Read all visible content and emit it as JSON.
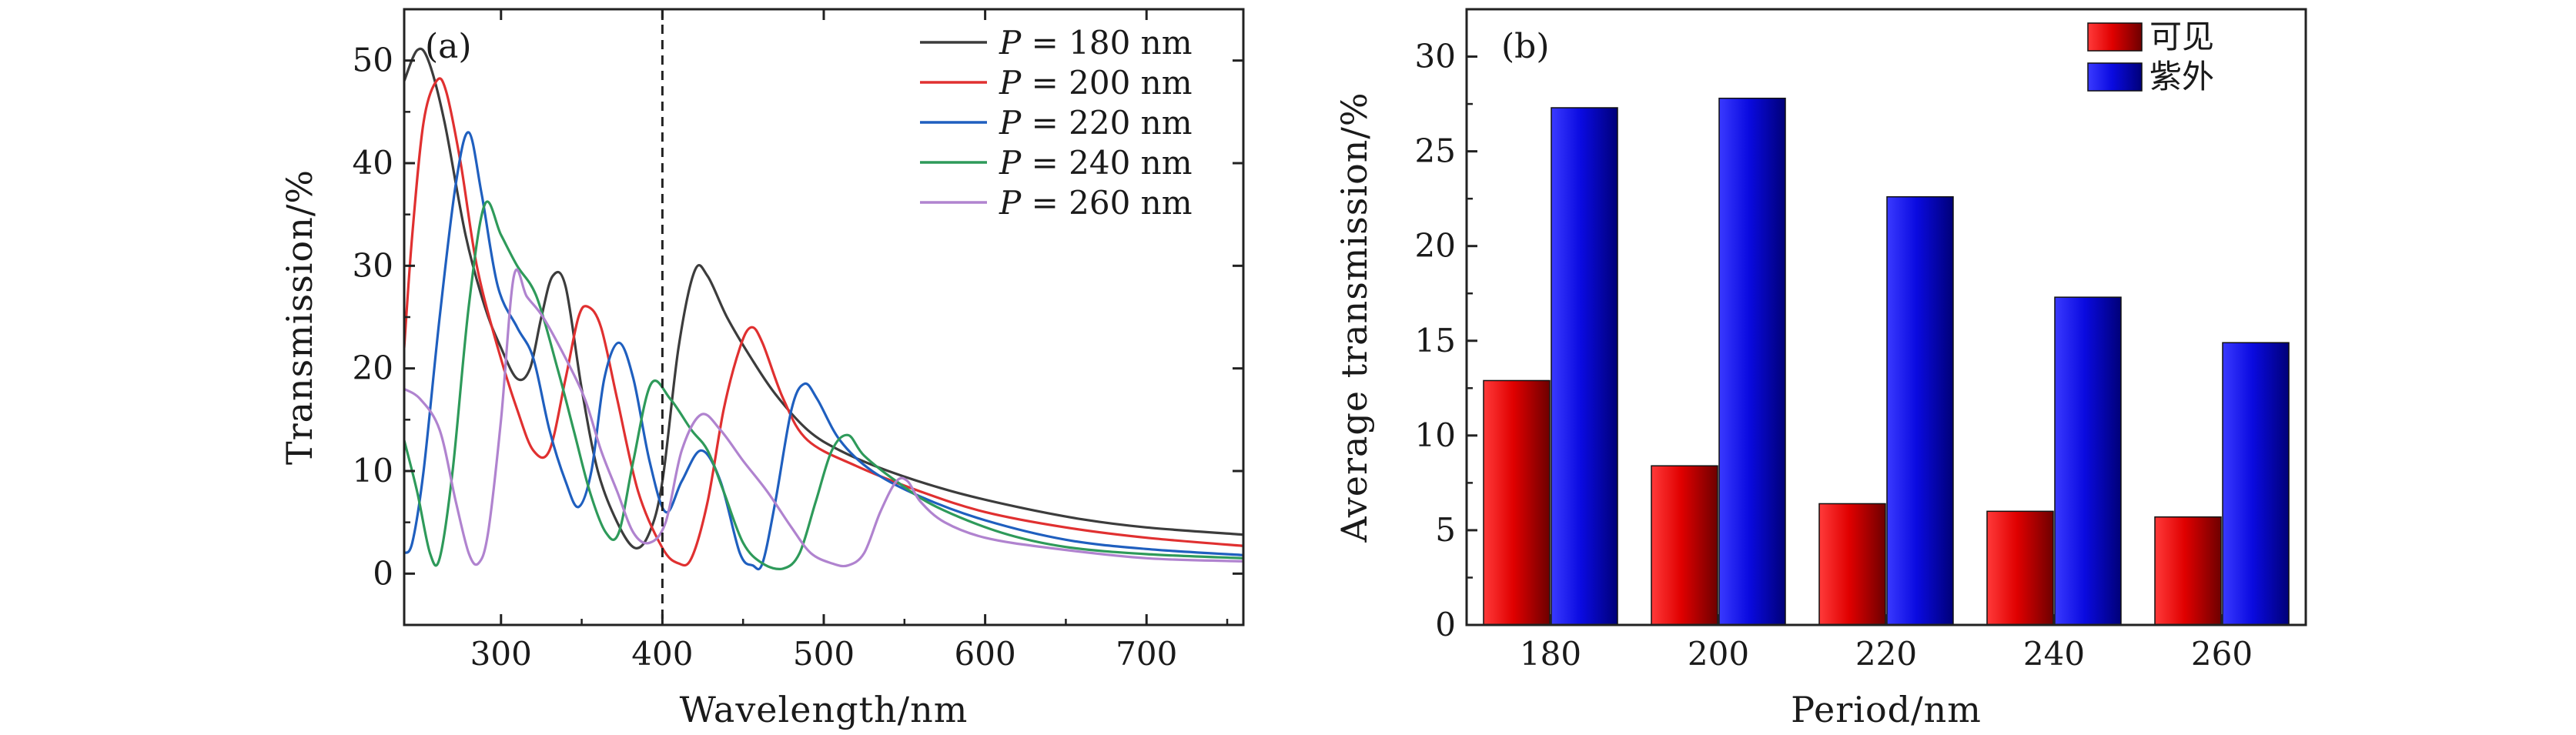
{
  "chart_data": [
    {
      "type": "line",
      "panel_label": "(a)",
      "xlabel": "Wavelength/nm",
      "ylabel": "Transmission/%",
      "xlim": [
        240,
        760
      ],
      "ylim": [
        -5,
        55
      ],
      "xticks": [
        "300",
        "400",
        "500",
        "600",
        "700"
      ],
      "yticks": [
        "0",
        "10",
        "20",
        "30",
        "40",
        "50"
      ],
      "reference_line_x": 400,
      "legend_position": "top-right",
      "series": [
        {
          "name_prefix": "P",
          "name_suffix": "= 180  nm",
          "color": "#3c3c3c",
          "points": [
            [
              240,
              48
            ],
            [
              248,
              51
            ],
            [
              255,
              50
            ],
            [
              265,
              44
            ],
            [
              278,
              33
            ],
            [
              290,
              26
            ],
            [
              300,
              22
            ],
            [
              310,
              19
            ],
            [
              318,
              20
            ],
            [
              325,
              25
            ],
            [
              332,
              29
            ],
            [
              340,
              28
            ],
            [
              350,
              18
            ],
            [
              360,
              10
            ],
            [
              372,
              5
            ],
            [
              383,
              2.5
            ],
            [
              392,
              4
            ],
            [
              400,
              9
            ],
            [
              410,
              22
            ],
            [
              420,
              29.5
            ],
            [
              428,
              29
            ],
            [
              440,
              25
            ],
            [
              455,
              21
            ],
            [
              470,
              17.5
            ],
            [
              490,
              14
            ],
            [
              510,
              12
            ],
            [
              540,
              10
            ],
            [
              580,
              8
            ],
            [
              620,
              6.5
            ],
            [
              660,
              5.3
            ],
            [
              700,
              4.5
            ],
            [
              760,
              3.8
            ]
          ]
        },
        {
          "name_prefix": "P",
          "name_suffix": "= 200  nm",
          "color": "#e03030",
          "points": [
            [
              240,
              22
            ],
            [
              245,
              33
            ],
            [
              252,
              44
            ],
            [
              260,
              48
            ],
            [
              266,
              47
            ],
            [
              275,
              40
            ],
            [
              285,
              30
            ],
            [
              298,
              22
            ],
            [
              310,
              16
            ],
            [
              320,
              12
            ],
            [
              330,
              12
            ],
            [
              340,
              19
            ],
            [
              348,
              25
            ],
            [
              354,
              26
            ],
            [
              362,
              24
            ],
            [
              372,
              17
            ],
            [
              385,
              8
            ],
            [
              400,
              2.5
            ],
            [
              410,
              1
            ],
            [
              418,
              1.5
            ],
            [
              428,
              7
            ],
            [
              438,
              16
            ],
            [
              448,
              22
            ],
            [
              455,
              24
            ],
            [
              462,
              22.5
            ],
            [
              475,
              17
            ],
            [
              490,
              13
            ],
            [
              520,
              10.5
            ],
            [
              560,
              8
            ],
            [
              600,
              6
            ],
            [
              650,
              4.5
            ],
            [
              700,
              3.5
            ],
            [
              760,
              2.7
            ]
          ]
        },
        {
          "name_prefix": "P",
          "name_suffix": "= 220  nm",
          "color": "#1f5fbf",
          "points": [
            [
              240,
              2
            ],
            [
              245,
              3
            ],
            [
              252,
              10
            ],
            [
              262,
              25
            ],
            [
              272,
              38
            ],
            [
              280,
              43
            ],
            [
              288,
              37
            ],
            [
              298,
              28
            ],
            [
              310,
              24
            ],
            [
              320,
              21
            ],
            [
              330,
              14
            ],
            [
              340,
              9
            ],
            [
              348,
              6.5
            ],
            [
              356,
              10
            ],
            [
              364,
              19
            ],
            [
              373,
              22.5
            ],
            [
              382,
              19
            ],
            [
              392,
              11
            ],
            [
              402,
              6
            ],
            [
              412,
              9
            ],
            [
              424,
              12
            ],
            [
              436,
              9
            ],
            [
              448,
              2
            ],
            [
              456,
              0.8
            ],
            [
              462,
              1
            ],
            [
              470,
              7
            ],
            [
              480,
              16
            ],
            [
              488,
              18.5
            ],
            [
              496,
              17
            ],
            [
              510,
              13
            ],
            [
              530,
              10
            ],
            [
              560,
              7.5
            ],
            [
              600,
              5.2
            ],
            [
              650,
              3.3
            ],
            [
              700,
              2.4
            ],
            [
              760,
              1.8
            ]
          ]
        },
        {
          "name_prefix": "P",
          "name_suffix": "= 240  nm",
          "color": "#2e9a5a",
          "points": [
            [
              240,
              13
            ],
            [
              248,
              8
            ],
            [
              256,
              2
            ],
            [
              262,
              1.5
            ],
            [
              270,
              10
            ],
            [
              280,
              26
            ],
            [
              290,
              36
            ],
            [
              300,
              33
            ],
            [
              310,
              30
            ],
            [
              322,
              27
            ],
            [
              335,
              20
            ],
            [
              345,
              14
            ],
            [
              355,
              8
            ],
            [
              365,
              4
            ],
            [
              373,
              4
            ],
            [
              382,
              11
            ],
            [
              393,
              18.5
            ],
            [
              405,
              17
            ],
            [
              418,
              14
            ],
            [
              428,
              12
            ],
            [
              438,
              8
            ],
            [
              450,
              3
            ],
            [
              462,
              1
            ],
            [
              475,
              0.5
            ],
            [
              485,
              2
            ],
            [
              495,
              7
            ],
            [
              505,
              12
            ],
            [
              515,
              13.5
            ],
            [
              525,
              11.5
            ],
            [
              545,
              9
            ],
            [
              570,
              6.5
            ],
            [
              610,
              4
            ],
            [
              650,
              2.6
            ],
            [
              700,
              1.9
            ],
            [
              760,
              1.5
            ]
          ]
        },
        {
          "name_prefix": "P",
          "name_suffix": "= 260  nm",
          "color": "#b083cf",
          "points": [
            [
              240,
              18
            ],
            [
              250,
              17
            ],
            [
              262,
              14
            ],
            [
              272,
              7
            ],
            [
              280,
              2
            ],
            [
              286,
              1
            ],
            [
              292,
              4
            ],
            [
              300,
              15
            ],
            [
              308,
              29
            ],
            [
              316,
              27
            ],
            [
              326,
              25
            ],
            [
              340,
              21
            ],
            [
              352,
              17
            ],
            [
              362,
              12
            ],
            [
              372,
              8
            ],
            [
              382,
              4
            ],
            [
              392,
              3
            ],
            [
              402,
              5
            ],
            [
              412,
              12
            ],
            [
              424,
              15.5
            ],
            [
              436,
              14
            ],
            [
              450,
              11
            ],
            [
              465,
              8
            ],
            [
              480,
              4.5
            ],
            [
              492,
              2
            ],
            [
              505,
              1
            ],
            [
              515,
              0.8
            ],
            [
              525,
              2
            ],
            [
              535,
              6
            ],
            [
              545,
              9
            ],
            [
              552,
              9
            ],
            [
              560,
              7
            ],
            [
              575,
              5
            ],
            [
              600,
              3.5
            ],
            [
              640,
              2.5
            ],
            [
              700,
              1.5
            ],
            [
              760,
              1.2
            ]
          ]
        }
      ]
    },
    {
      "type": "bar",
      "panel_label": "(b)",
      "xlabel": "Period/nm",
      "ylabel": "Average transmission/%",
      "ylim": [
        0,
        32.5
      ],
      "yticks": [
        "0",
        "5",
        "10",
        "15",
        "20",
        "25",
        "30"
      ],
      "categories": [
        "180",
        "200",
        "220",
        "240",
        "260"
      ],
      "legend_position": "top-right",
      "series": [
        {
          "name": "可见",
          "color": "#e00000",
          "values": [
            12.9,
            8.4,
            6.4,
            6.0,
            5.7
          ]
        },
        {
          "name": "紫外",
          "color": "#1010e0",
          "values": [
            27.3,
            27.8,
            22.6,
            17.3,
            14.9
          ]
        }
      ]
    }
  ]
}
